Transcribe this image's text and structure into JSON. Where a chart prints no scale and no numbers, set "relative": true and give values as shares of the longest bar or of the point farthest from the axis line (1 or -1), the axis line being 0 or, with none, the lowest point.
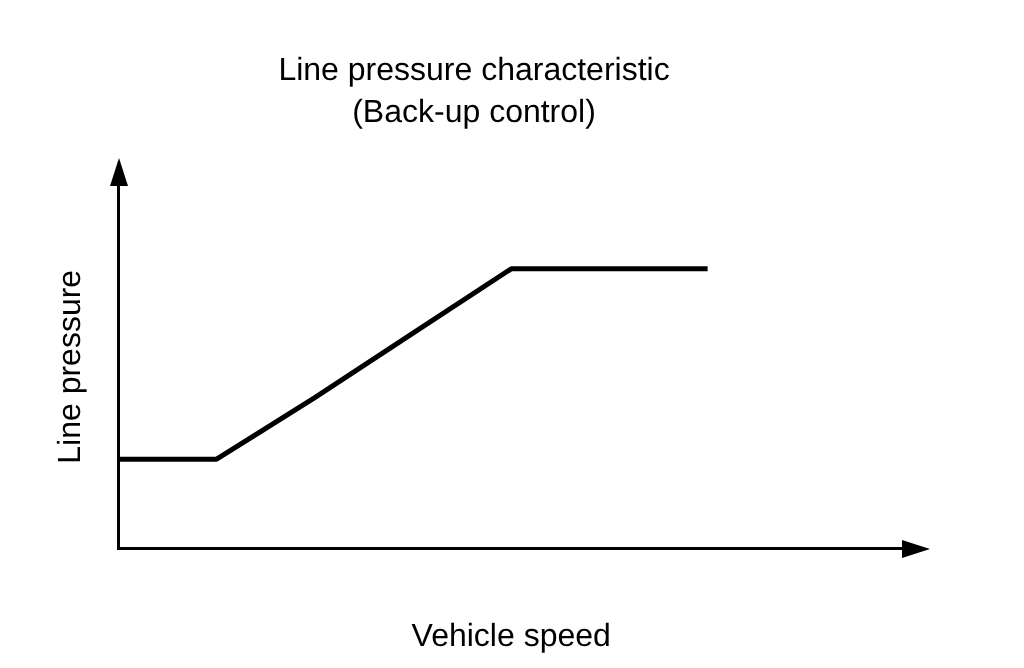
{
  "chart_data": {
    "type": "line",
    "title": "Line pressure characteristic",
    "subtitle": "(Back-up control)",
    "xlabel": "Vehicle speed",
    "ylabel": "Line pressure",
    "relative": true,
    "categories": [
      null,
      null,
      null,
      null,
      null,
      null,
      null,
      null,
      null
    ],
    "series": [
      {
        "color": "#000000",
        "values": [
          0.32,
          0.32,
          0.54,
          0.77,
          1,
          1,
          1,
          null,
          null
        ]
      }
    ],
    "grid": false,
    "legend": false,
    "marker": "none",
    "line_style": "solid"
  }
}
